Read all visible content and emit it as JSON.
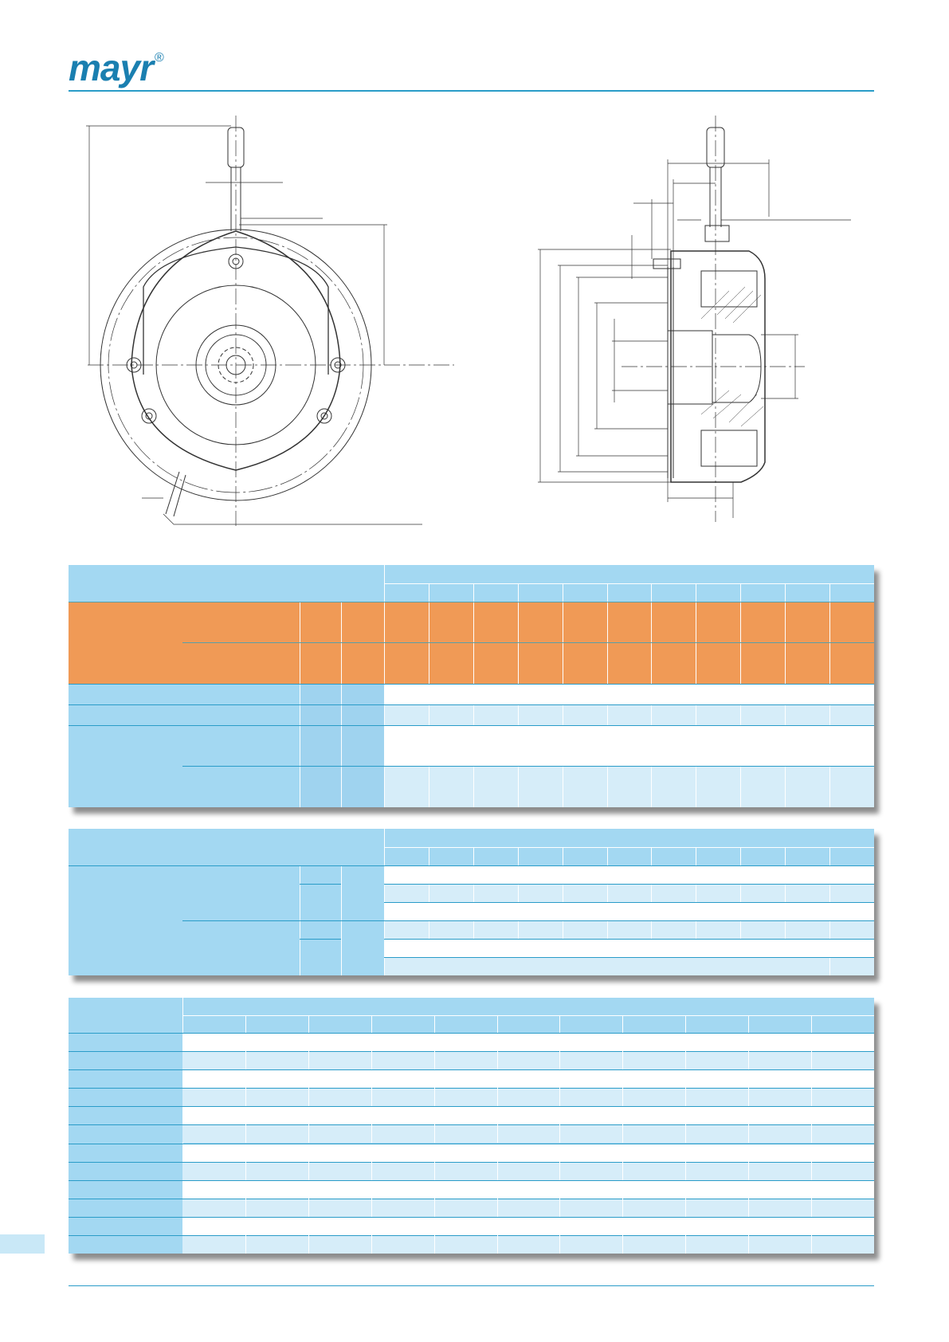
{
  "header": {
    "brand": "mayr",
    "registered_mark": "®"
  },
  "colors": {
    "brand_blue": "#1a7fb0",
    "table_header_blue": "#a3d8f2",
    "table_orange": "#f09a56",
    "table_light_blue": "#d6edf9",
    "rule_blue": "#2a9cc8"
  }
}
